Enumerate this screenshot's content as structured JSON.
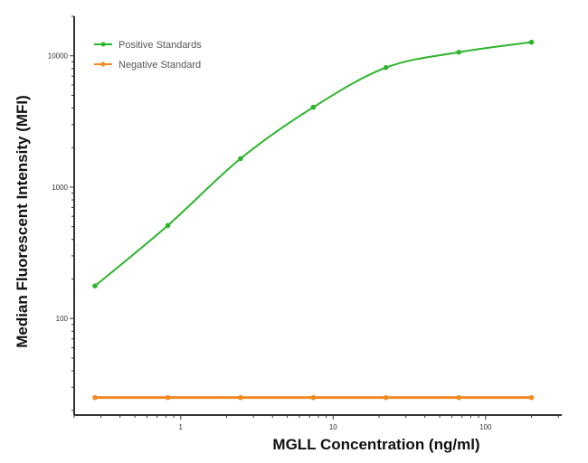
{
  "chart_data": {
    "type": "line",
    "title": "",
    "xlabel": "MGLL Concentration (ng/ml)",
    "ylabel": "Median  Fluorescent Intensity  (MFI)",
    "xscale": "log",
    "yscale": "log",
    "xlim": [
      0.2,
      316
    ],
    "ylim": [
      18.4,
      20000
    ],
    "xticks": [
      1,
      10,
      100
    ],
    "xtick_labels": [
      "1",
      "10",
      "100"
    ],
    "yticks": [
      100,
      1000,
      10000
    ],
    "ytick_labels": [
      "100",
      "1000",
      "10000"
    ],
    "grid": false,
    "legend_position": "top-left",
    "series": [
      {
        "name": "Positive Standards",
        "color": "#2db52d",
        "x": [
          0.274,
          0.823,
          2.47,
          7.41,
          22.2,
          66.7,
          200
        ],
        "y": [
          177,
          511,
          1650,
          4060,
          8140,
          10650,
          12700
        ]
      },
      {
        "name": "Negative Standard",
        "color": "#f08a24",
        "x": [
          0.274,
          0.823,
          2.47,
          7.41,
          22.2,
          66.7,
          200
        ],
        "y": [
          25,
          25,
          25,
          25,
          25,
          25,
          25
        ]
      }
    ]
  }
}
